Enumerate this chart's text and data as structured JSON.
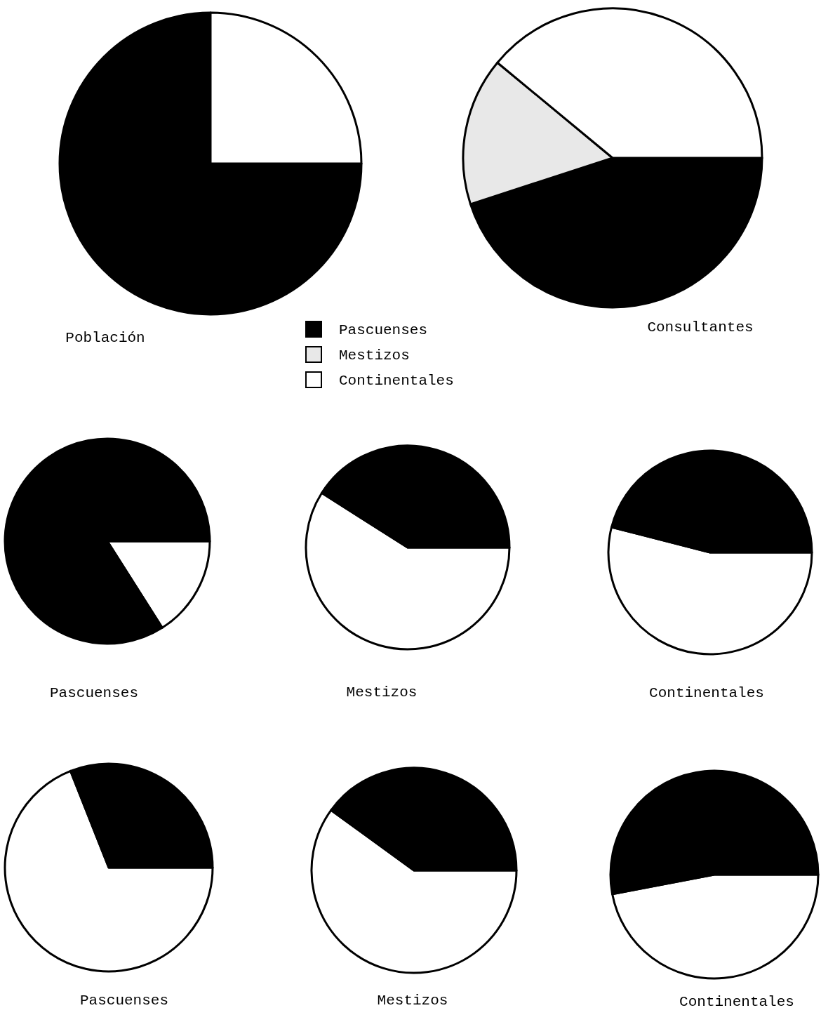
{
  "chart_data": [
    {
      "type": "pie",
      "title": "Población",
      "categories": [
        null,
        null
      ],
      "values": [
        75,
        25
      ],
      "colors": [
        "#000000",
        "#ffffff"
      ]
    },
    {
      "type": "pie",
      "title": "Consultantes",
      "categories": [
        "Pascuenses",
        "Mestizos",
        "Continentales"
      ],
      "values": [
        45,
        16,
        39
      ],
      "colors": [
        "#000000",
        "#e8e8e8",
        "#ffffff"
      ],
      "legend": "left"
    },
    {
      "type": "pie",
      "title": "Pascuenses",
      "categories": [
        null,
        null
      ],
      "values": [
        16,
        84
      ],
      "colors": [
        "#ffffff",
        "#000000"
      ]
    },
    {
      "type": "pie",
      "title": "Mestizos",
      "categories": [
        null,
        null
      ],
      "values": [
        59,
        41
      ],
      "colors": [
        "#ffffff",
        "#000000"
      ]
    },
    {
      "type": "pie",
      "title": "Continentales",
      "categories": [
        null,
        null
      ],
      "values": [
        54,
        46
      ],
      "colors": [
        "#ffffff",
        "#000000"
      ]
    },
    {
      "type": "pie",
      "title": "Pascuenses",
      "categories": [
        null,
        null
      ],
      "values": [
        69,
        31
      ],
      "colors": [
        "#ffffff",
        "#000000"
      ]
    },
    {
      "type": "pie",
      "title": "Mestizos",
      "categories": [
        null,
        null
      ],
      "values": [
        60,
        40
      ],
      "colors": [
        "#ffffff",
        "#000000"
      ]
    },
    {
      "type": "pie",
      "title": "Continentales",
      "categories": [
        null,
        null
      ],
      "values": [
        47,
        53
      ],
      "colors": [
        "#ffffff",
        "#000000"
      ]
    }
  ]
}
